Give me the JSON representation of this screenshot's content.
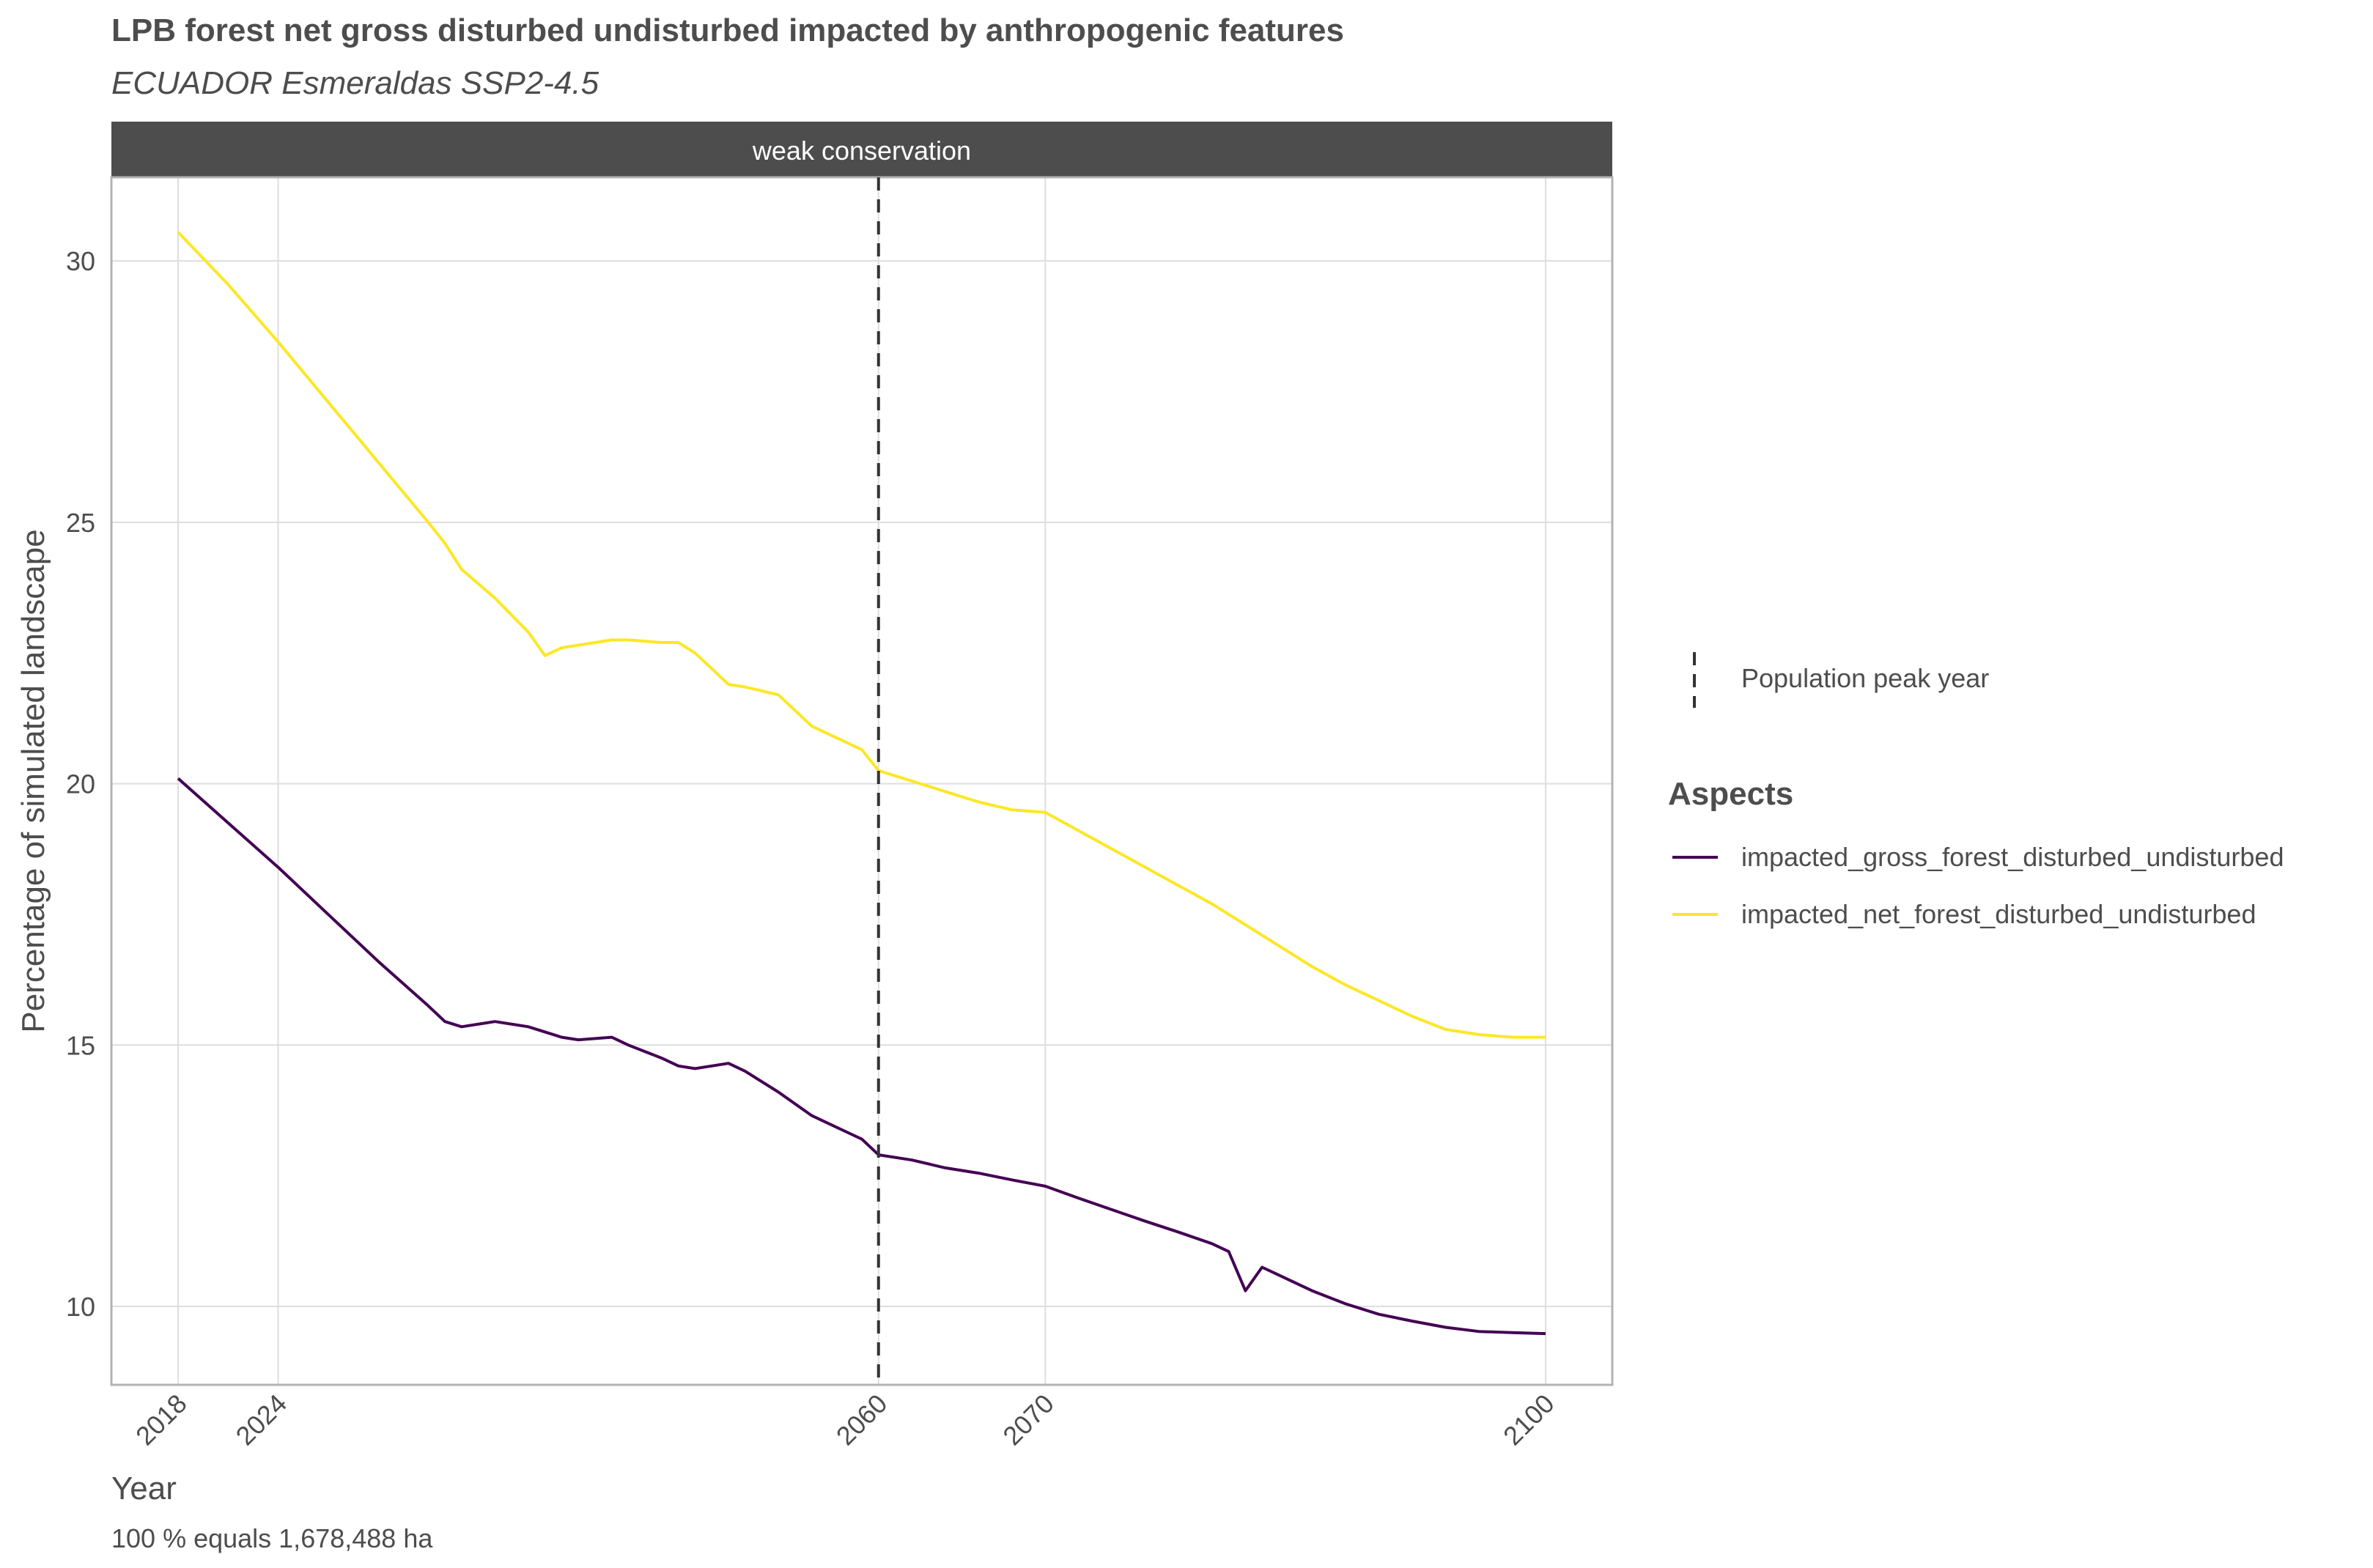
{
  "chart_data": {
    "type": "line",
    "title": "LPB forest net gross disturbed undisturbed impacted by anthropogenic features",
    "subtitle": "ECUADOR Esmeraldas SSP2-4.5",
    "facet_label": "weak conservation",
    "xlabel": "Year",
    "ylabel": "Percentage of simulated landscape",
    "caption": "100 % equals 1,678,488 ha",
    "xlim": [
      2014,
      2104
    ],
    "ylim": [
      8.5,
      31.6
    ],
    "x_ticks": [
      2018,
      2024,
      2060,
      2070,
      2100
    ],
    "y_ticks": [
      10,
      15,
      20,
      25,
      30
    ],
    "grid": true,
    "vline": {
      "x": 2060,
      "label": "Population peak year",
      "style": "dashed",
      "color": "#333333"
    },
    "legend": {
      "title": "Aspects",
      "position": "right"
    },
    "series": [
      {
        "name": "impacted_gross_forest_disturbed_undisturbed",
        "color": "#440154",
        "x": [
          2018,
          2021,
          2024,
          2027,
          2030,
          2033,
          2034,
          2035,
          2037,
          2039,
          2041,
          2042,
          2044,
          2045,
          2047,
          2048,
          2049,
          2050,
          2051,
          2052,
          2054,
          2056,
          2058,
          2059,
          2060,
          2062,
          2064,
          2066,
          2068,
          2070,
          2072,
          2074,
          2076,
          2078,
          2080,
          2081,
          2082,
          2083,
          2084,
          2086,
          2088,
          2090,
          2092,
          2094,
          2096,
          2098,
          2100
        ],
        "values": [
          20.1,
          19.25,
          18.4,
          17.5,
          16.6,
          15.75,
          15.45,
          15.35,
          15.45,
          15.35,
          15.15,
          15.1,
          15.15,
          15.0,
          14.75,
          14.6,
          14.55,
          14.6,
          14.65,
          14.5,
          14.1,
          13.65,
          13.35,
          13.2,
          12.9,
          12.8,
          12.65,
          12.55,
          12.42,
          12.3,
          12.07,
          11.85,
          11.63,
          11.42,
          11.2,
          11.05,
          10.3,
          10.75,
          10.6,
          10.3,
          10.05,
          9.85,
          9.72,
          9.6,
          9.52,
          9.5,
          9.48
        ]
      },
      {
        "name": "impacted_net_forest_disturbed_undisturbed",
        "color": "#fde725",
        "x": [
          2018,
          2021,
          2024,
          2027,
          2030,
          2033,
          2034,
          2035,
          2037,
          2039,
          2040,
          2041,
          2042,
          2044,
          2045,
          2047,
          2048,
          2049,
          2050,
          2051,
          2052,
          2054,
          2056,
          2058,
          2059,
          2060,
          2062,
          2064,
          2066,
          2068,
          2070,
          2072,
          2074,
          2076,
          2078,
          2080,
          2082,
          2084,
          2086,
          2088,
          2090,
          2092,
          2094,
          2096,
          2098,
          2100
        ],
        "values": [
          30.55,
          29.55,
          28.45,
          27.3,
          26.15,
          25.0,
          24.6,
          24.1,
          23.55,
          22.9,
          22.45,
          22.6,
          22.65,
          22.75,
          22.75,
          22.7,
          22.7,
          22.5,
          22.2,
          21.9,
          21.85,
          21.7,
          21.1,
          20.8,
          20.65,
          20.25,
          20.05,
          19.85,
          19.65,
          19.5,
          19.45,
          19.1,
          18.75,
          18.4,
          18.05,
          17.7,
          17.3,
          16.9,
          16.5,
          16.15,
          15.85,
          15.55,
          15.3,
          15.2,
          15.15,
          15.15
        ]
      }
    ]
  }
}
